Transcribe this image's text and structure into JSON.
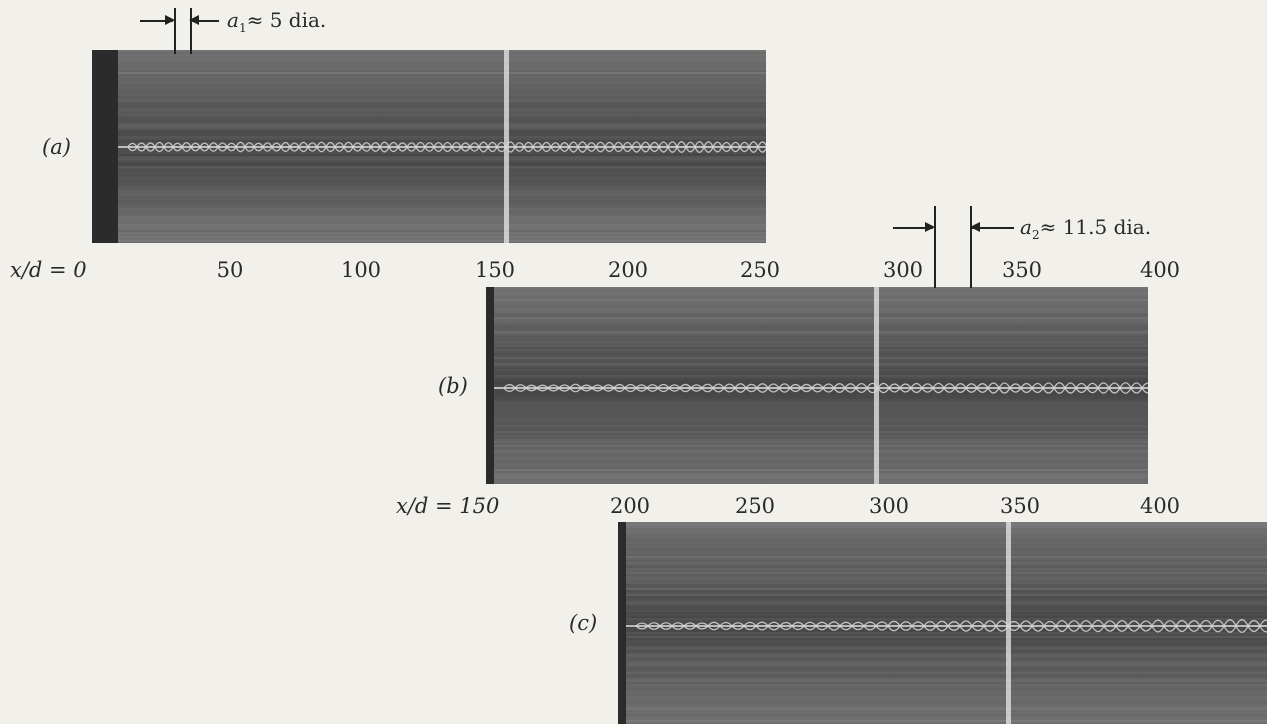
{
  "figure": {
    "panels": [
      {
        "id": "a",
        "label": "(a)",
        "axis_prefix": "x/d = 0",
        "ticks": [
          "50",
          "100",
          "150",
          "200",
          "250"
        ]
      },
      {
        "id": "b",
        "label": "(b)",
        "axis_prefix": "x/d = 150",
        "ticks": [
          "200",
          "250",
          "300",
          "350",
          "400"
        ]
      },
      {
        "id": "c",
        "label": "(c)",
        "axis_prefix": "",
        "ticks": []
      }
    ],
    "top_ticks": [
      "300",
      "350",
      "400"
    ],
    "annotations": {
      "a1": {
        "symbol": "a",
        "subscript": "1",
        "text": "≈ 5 dia."
      },
      "a2": {
        "symbol": "a",
        "subscript": "2",
        "text": "≈ 11.5 dia."
      }
    },
    "colors": {
      "page": "#f2f0eb",
      "photo_dark": "#3d3d3d",
      "photo_mid": "#6a6a6a",
      "streak_light": "#d8d8d8",
      "edge_bar": "#2b2b2b"
    }
  }
}
